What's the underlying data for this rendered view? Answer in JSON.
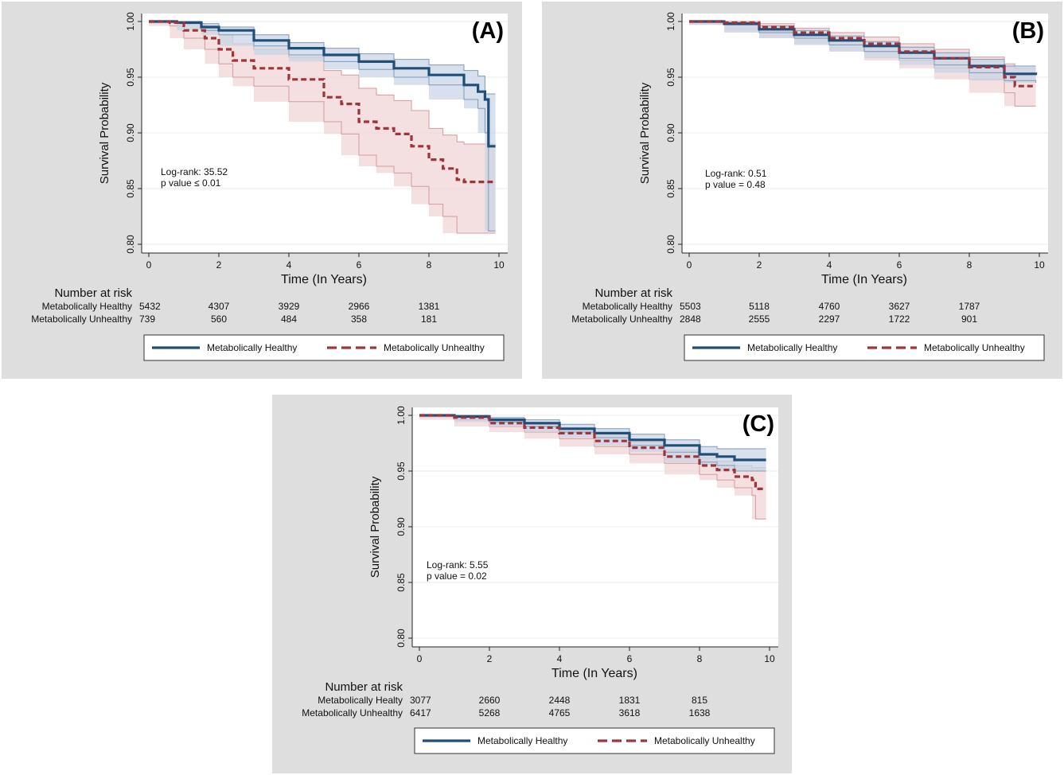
{
  "series_styles": {
    "healthy_color": "#1f4e79",
    "healthy_ci_fill": "#c9d6e6",
    "healthy_ci_line": "#7e9ab9",
    "unhealthy_color": "#a03438",
    "unhealthy_ci_fill": "#f0d6d6",
    "unhealthy_ci_line": "#d49a9c"
  },
  "chart_data": [
    {
      "type": "line",
      "panel_label": "(A)",
      "ylabel": "Survival Probability",
      "xlabel": "Time (In Years)",
      "xlim": [
        0,
        10
      ],
      "ylim": [
        0.8,
        1.0
      ],
      "xticks": [
        "0",
        "2",
        "4",
        "6",
        "8",
        "10"
      ],
      "yticks": [
        "0.80",
        "0.85",
        "0.90",
        "0.95",
        "1.00"
      ],
      "stats": [
        "Log-rank: 35.52",
        "p value ≤ 0.01"
      ],
      "series": [
        {
          "name": "Metabolically Healthy",
          "x": [
            0,
            0.8,
            1.5,
            2,
            3,
            4,
            5,
            6,
            7,
            8,
            9,
            9.4,
            9.6,
            9.7,
            9.9
          ],
          "y": [
            1.0,
            0.999,
            0.995,
            0.992,
            0.983,
            0.976,
            0.97,
            0.964,
            0.958,
            0.952,
            0.943,
            0.937,
            0.93,
            0.888,
            0.888
          ],
          "ci_upper": [
            1.0,
            1.0,
            0.998,
            0.995,
            0.988,
            0.981,
            0.976,
            0.971,
            0.966,
            0.961,
            0.956,
            0.951,
            0.935,
            0.935,
            0.935
          ],
          "ci_lower": [
            1.0,
            0.998,
            0.992,
            0.988,
            0.978,
            0.97,
            0.964,
            0.957,
            0.95,
            0.943,
            0.93,
            0.922,
            0.9,
            0.812,
            0.812
          ]
        },
        {
          "name": "Metabolically Unhealthy",
          "x": [
            0,
            0.6,
            1,
            1.6,
            2,
            2.4,
            3,
            4,
            5,
            5.5,
            6,
            6.5,
            7,
            7.5,
            8,
            8.4,
            8.8,
            9,
            9.5,
            9.9
          ],
          "y": [
            1.0,
            0.999,
            0.992,
            0.985,
            0.975,
            0.965,
            0.958,
            0.948,
            0.932,
            0.926,
            0.91,
            0.904,
            0.899,
            0.888,
            0.876,
            0.868,
            0.858,
            0.856,
            0.856,
            0.856
          ],
          "ci_upper": [
            1.0,
            1.0,
            0.998,
            0.994,
            0.988,
            0.98,
            0.975,
            0.968,
            0.956,
            0.952,
            0.94,
            0.934,
            0.929,
            0.92,
            0.904,
            0.898,
            0.892,
            0.89,
            0.89,
            0.89
          ],
          "ci_lower": [
            1.0,
            0.996,
            0.985,
            0.975,
            0.962,
            0.95,
            0.942,
            0.928,
            0.91,
            0.899,
            0.88,
            0.87,
            0.864,
            0.852,
            0.836,
            0.825,
            0.81,
            0.81,
            0.81,
            0.81
          ]
        }
      ],
      "risk_table": {
        "title": "Number at risk",
        "rows": [
          {
            "label": "Metabolically Healthy",
            "values": [
              "5432",
              "4307",
              "3929",
              "2966",
              "1381"
            ]
          },
          {
            "label": "Metabolically Unhealthy",
            "values": [
              "739",
              "560",
              "484",
              "358",
              "181"
            ]
          }
        ]
      },
      "legend": [
        "Metabolically Healthy",
        "Metabolically Unhealthy"
      ]
    },
    {
      "type": "line",
      "panel_label": "(B)",
      "ylabel": "Survival Probability",
      "xlabel": "Time (In Years)",
      "xlim": [
        0,
        10
      ],
      "ylim": [
        0.8,
        1.0
      ],
      "xticks": [
        "0",
        "2",
        "4",
        "6",
        "8",
        "10"
      ],
      "yticks": [
        "0.80",
        "0.85",
        "0.90",
        "0.95",
        "1.00"
      ],
      "stats": [
        "Log-rank: 0.51",
        "p value = 0.48"
      ],
      "series": [
        {
          "name": "Metabolically Healthy",
          "x": [
            0,
            1,
            2,
            3,
            4,
            5,
            6,
            7,
            8,
            9,
            9.9
          ],
          "y": [
            1.0,
            0.998,
            0.993,
            0.988,
            0.983,
            0.978,
            0.972,
            0.967,
            0.96,
            0.953,
            0.952
          ],
          "ci_upper": [
            1.0,
            0.999,
            0.996,
            0.992,
            0.987,
            0.982,
            0.977,
            0.972,
            0.966,
            0.96,
            0.96
          ],
          "ci_lower": [
            1.0,
            0.997,
            0.99,
            0.985,
            0.979,
            0.973,
            0.967,
            0.961,
            0.954,
            0.947,
            0.945
          ]
        },
        {
          "name": "Metabolically Unhealthy",
          "x": [
            0,
            1,
            2,
            3,
            4,
            5,
            6,
            7,
            8,
            9,
            9.3,
            9.9
          ],
          "y": [
            1.0,
            0.999,
            0.995,
            0.99,
            0.985,
            0.98,
            0.973,
            0.967,
            0.959,
            0.95,
            0.942,
            0.942
          ],
          "ci_upper": [
            1.0,
            1.0,
            0.998,
            0.994,
            0.99,
            0.986,
            0.98,
            0.975,
            0.968,
            0.962,
            0.958,
            0.958
          ],
          "ci_lower": [
            1.0,
            0.997,
            0.991,
            0.985,
            0.979,
            0.973,
            0.965,
            0.958,
            0.948,
            0.936,
            0.924,
            0.924
          ]
        }
      ],
      "risk_table": {
        "title": "Number at risk",
        "rows": [
          {
            "label": "Metabolically Healthy",
            "values": [
              "5503",
              "5118",
              "4760",
              "3627",
              "1787"
            ]
          },
          {
            "label": "Metabolically Unhealthy",
            "values": [
              "2848",
              "2555",
              "2297",
              "1722",
              "901"
            ]
          }
        ]
      },
      "legend": [
        "Metabolically Healthy",
        "Metabolically Unhealthy"
      ]
    },
    {
      "type": "line",
      "panel_label": "(C)",
      "ylabel": "Survival Probability",
      "xlabel": "Time (In Years)",
      "xlim": [
        0,
        10
      ],
      "ylim": [
        0.8,
        1.0
      ],
      "xticks": [
        "0",
        "2",
        "4",
        "6",
        "8",
        "10"
      ],
      "yticks": [
        "0.80",
        "0.85",
        "0.90",
        "0.95",
        "1.00"
      ],
      "stats": [
        "Log-rank: 5.55",
        "p value = 0.02"
      ],
      "series": [
        {
          "name": "Metabolically Healthy",
          "x": [
            0,
            1,
            2,
            3,
            4,
            5,
            6,
            7,
            8,
            8.5,
            9,
            9.9
          ],
          "y": [
            1.0,
            0.999,
            0.996,
            0.993,
            0.988,
            0.984,
            0.978,
            0.973,
            0.965,
            0.963,
            0.96,
            0.96
          ],
          "ci_upper": [
            1.0,
            1.0,
            0.998,
            0.996,
            0.992,
            0.988,
            0.983,
            0.978,
            0.972,
            0.97,
            0.97,
            0.97
          ],
          "ci_lower": [
            1.0,
            0.998,
            0.994,
            0.99,
            0.985,
            0.98,
            0.973,
            0.967,
            0.958,
            0.955,
            0.95,
            0.95
          ]
        },
        {
          "name": "Metabolically Unhealthy",
          "x": [
            0,
            1,
            2,
            3,
            4,
            5,
            6,
            7,
            8,
            8.5,
            9,
            9.5,
            9.6,
            9.9
          ],
          "y": [
            1.0,
            0.998,
            0.993,
            0.989,
            0.984,
            0.977,
            0.971,
            0.963,
            0.955,
            0.951,
            0.945,
            0.942,
            0.934,
            0.934
          ],
          "ci_upper": [
            1.0,
            0.999,
            0.996,
            0.992,
            0.988,
            0.982,
            0.976,
            0.969,
            0.962,
            0.959,
            0.955,
            0.953,
            0.953,
            0.953
          ],
          "ci_lower": [
            1.0,
            0.996,
            0.99,
            0.985,
            0.979,
            0.972,
            0.965,
            0.957,
            0.947,
            0.942,
            0.935,
            0.928,
            0.907,
            0.907
          ]
        }
      ],
      "risk_table": {
        "title": "Number at risk",
        "rows": [
          {
            "label": "Metabolically Healty",
            "values": [
              "3077",
              "2660",
              "2448",
              "1831",
              "815"
            ]
          },
          {
            "label": "Metabolically Unhealthy",
            "values": [
              "6417",
              "5268",
              "4765",
              "3618",
              "1638"
            ]
          }
        ]
      },
      "legend": [
        "Metabolically Healthy",
        "Metabolically Unhealthy"
      ]
    }
  ]
}
